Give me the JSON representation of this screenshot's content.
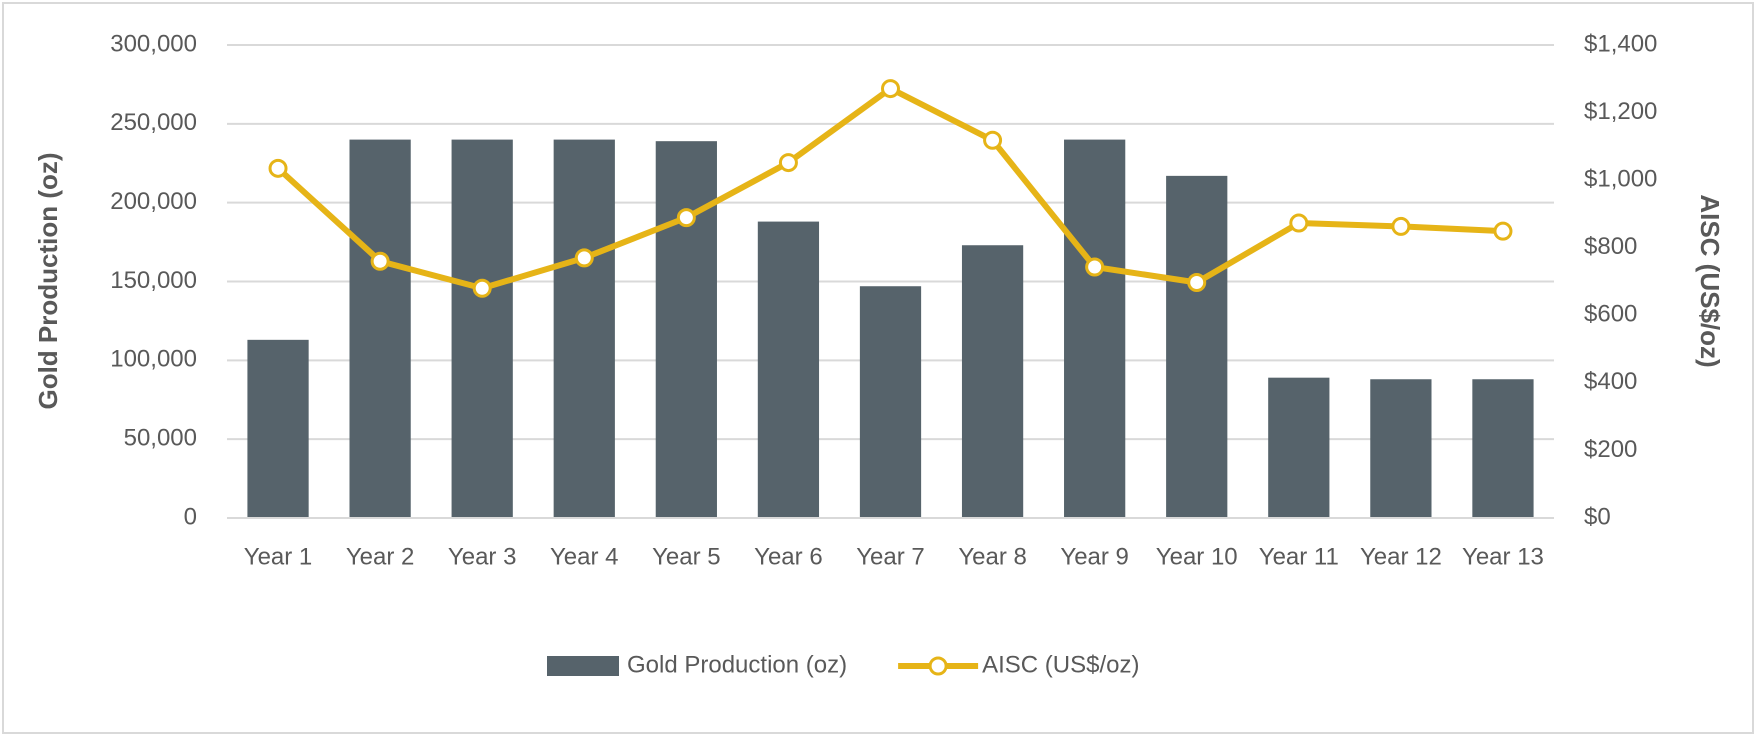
{
  "chart_data": {
    "type": "bar-line",
    "categories": [
      "Year 1",
      "Year 2",
      "Year 3",
      "Year 4",
      "Year 5",
      "Year 6",
      "Year 7",
      "Year 8",
      "Year 9",
      "Year 10",
      "Year 11",
      "Year 12",
      "Year 13"
    ],
    "series": [
      {
        "name": "Gold Production (oz)",
        "type": "bar",
        "color": "#56636b",
        "values": [
          113000,
          240000,
          240000,
          240000,
          239000,
          188000,
          147000,
          173000,
          240000,
          217000,
          89000,
          88000,
          88000
        ]
      },
      {
        "name": "AISC (US$/oz)",
        "type": "line",
        "axis": "y2",
        "color": "#e6b417",
        "values": [
          1035,
          760,
          680,
          770,
          889,
          1052,
          1271,
          1118,
          743,
          697,
          873,
          863,
          849
        ]
      }
    ],
    "ylabel": "Gold Production (oz)",
    "y2label": "AISC (US$/oz)",
    "ylim": [
      0,
      300000
    ],
    "yticks": [
      0,
      {
        "value": 50000,
        "label": "50,000"
      },
      {
        "value": 100000,
        "label": "100,000"
      },
      {
        "value": 150000,
        "label": "150,000"
      },
      {
        "value": 200000,
        "label": "200,000"
      },
      {
        "value": 250000,
        "label": "250,000"
      },
      {
        "value": 300000,
        "label": "300,000"
      }
    ],
    "y2lim": [
      0,
      1400
    ],
    "y2ticks": [
      {
        "value": 0,
        "label": "$0"
      },
      {
        "value": 200,
        "label": "$200"
      },
      {
        "value": 400,
        "label": "$400"
      },
      {
        "value": 600,
        "label": "$600"
      },
      {
        "value": 800,
        "label": "$800"
      },
      {
        "value": 1000,
        "label": "$1,000"
      },
      {
        "value": 1200,
        "label": "$1,200"
      },
      {
        "value": 1400,
        "label": "$1,400"
      }
    ],
    "grid": true,
    "legend": "bottom"
  }
}
